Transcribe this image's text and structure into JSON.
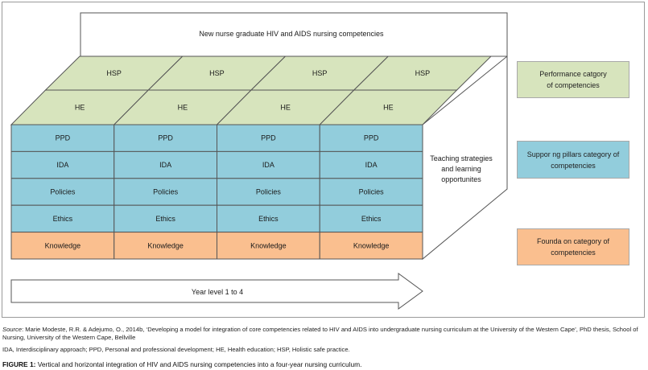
{
  "top_label": "New nurse graduate HIV and AIDS nursing competencies",
  "hsp_row": [
    "HSP",
    "HSP",
    "HSP",
    "HSP"
  ],
  "he_row": [
    "HE",
    "HE",
    "HE",
    "HE"
  ],
  "front_rows": [
    {
      "label": "PPD",
      "color": "#92cddc"
    },
    {
      "label": "IDA",
      "color": "#92cddc"
    },
    {
      "label": "Policies",
      "color": "#92cddc"
    },
    {
      "label": "Ethics",
      "color": "#92cddc"
    },
    {
      "label": "Knowledge",
      "color": "#fabf8f"
    }
  ],
  "side_label": "Teaching strategies\nand learning\nopportunites",
  "arrow_label": "Year level 1 to 4",
  "legend": {
    "performance": {
      "text": "Performance catgory\nof competencies",
      "color": "#d7e4bd"
    },
    "supporting": {
      "text": "Suppor  ng pillars category of\ncompetencies",
      "color": "#92cddc"
    },
    "foundation": {
      "text": "Founda  on category of\ncompetencies",
      "color": "#fabf8f"
    }
  },
  "colors": {
    "top_green": "#d7e4bd",
    "blue": "#92cddc",
    "orange": "#fabf8f",
    "stroke": "#555555"
  },
  "source_label": "Source",
  "source_text": ": Marie Modeste, R.R. & Adejumo, O., 2014b, ‘Developing a model for integration of core competencies related to HIV and AIDS into undergraduate nursing curriculum at the University of the Western Cape’, PhD thesis, School of Nursing, University of the Western Cape, Bellville",
  "abbrev_text": "IDA, Interdisciplinary approach; PPD, Personal and professional development; HE, Health education; HSP, Holistic safe practice.",
  "figure_label": "FIGURE 1:",
  "figure_caption": " Vertical and horizontal integration of HIV and AIDS nursing competencies into a four-year nursing curriculum."
}
